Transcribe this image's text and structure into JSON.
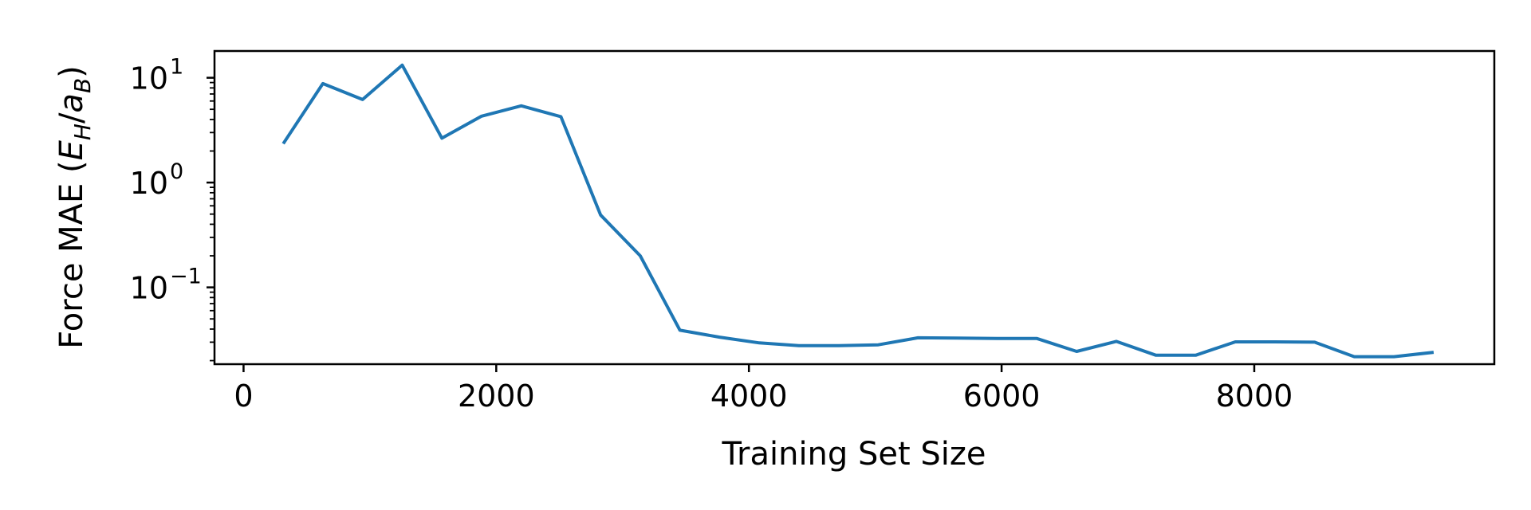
{
  "chart_data": {
    "type": "line",
    "title": "",
    "xlabel": "Training Set Size",
    "ylabel_parts": [
      "Force MAE (",
      "E",
      "H",
      "/",
      "a",
      "B",
      ")"
    ],
    "xscale": "linear",
    "yscale": "log",
    "xlim": [
      -230,
      9900
    ],
    "ylim": [
      0.0185,
      18
    ],
    "x_ticks": [
      0,
      2000,
      4000,
      6000,
      8000
    ],
    "x_tick_labels": [
      "0",
      "2000",
      "4000",
      "6000",
      "8000"
    ],
    "y_ticks": [
      0.1,
      1,
      10
    ],
    "y_tick_labels": [
      {
        "base": "10",
        "exp": "−1"
      },
      {
        "base": "10",
        "exp": "0"
      },
      {
        "base": "10",
        "exp": "1"
      }
    ],
    "grid": false,
    "legend": "none",
    "series": [
      {
        "color": "#1f77b4",
        "x": [
          314,
          628,
          942,
          1256,
          1570,
          1884,
          2198,
          2512,
          2826,
          3140,
          3454,
          3768,
          4082,
          4396,
          4710,
          5024,
          5338,
          5652,
          5966,
          6280,
          6594,
          6908,
          7222,
          7536,
          7850,
          8164,
          8478,
          8792,
          9106,
          9420
        ],
        "y": [
          2.35,
          8.8,
          6.2,
          13.2,
          2.65,
          4.3,
          5.4,
          4.25,
          0.49,
          0.2,
          0.039,
          0.0335,
          0.0295,
          0.0278,
          0.0278,
          0.0283,
          0.033,
          0.0328,
          0.0325,
          0.0325,
          0.0245,
          0.0305,
          0.0225,
          0.0225,
          0.0302,
          0.0302,
          0.03,
          0.0218,
          0.0218,
          0.024
        ]
      }
    ]
  }
}
